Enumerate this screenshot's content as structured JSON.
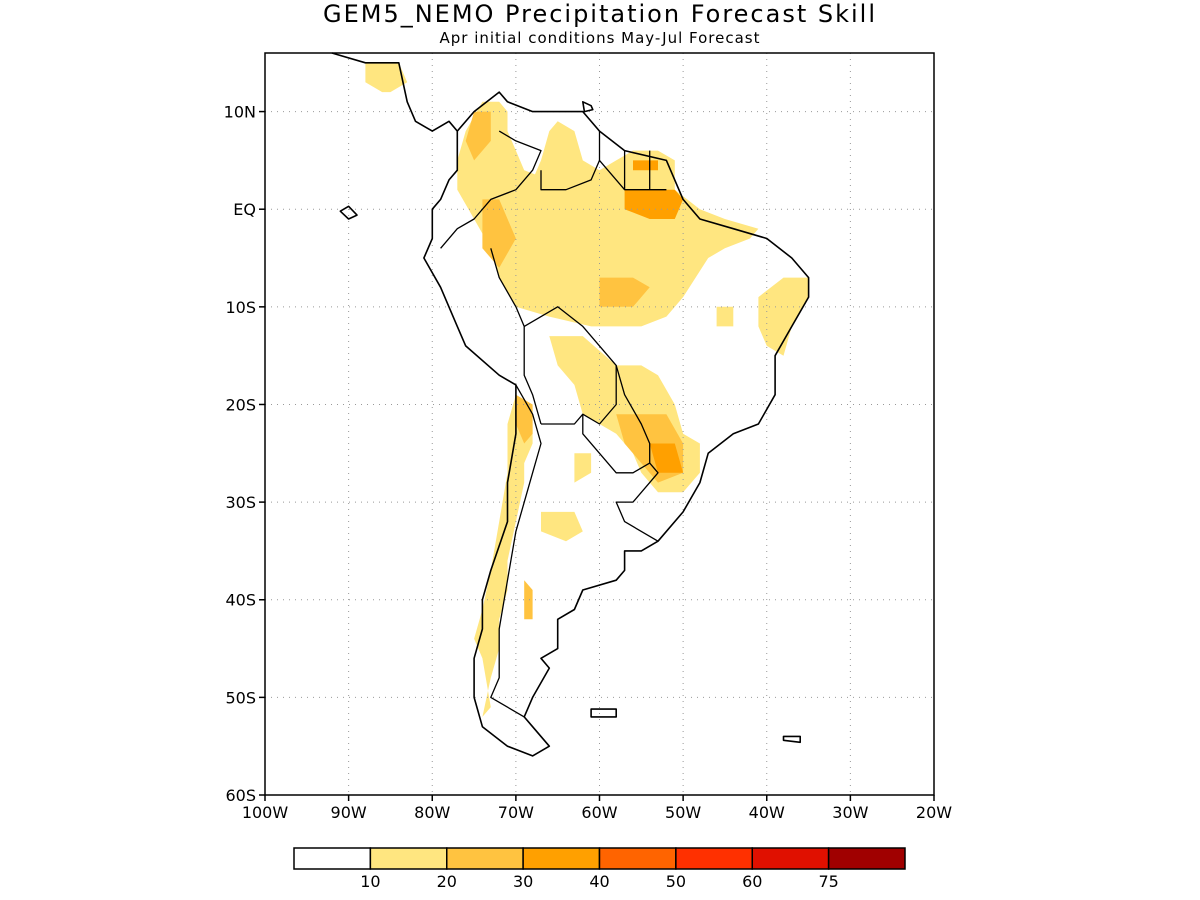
{
  "title": "GEM5_NEMO Precipitation Forecast Skill",
  "subtitle": "Apr initial conditions   May-Jul Forecast",
  "map": {
    "lon_range": [
      -100,
      -20
    ],
    "lat_range": [
      -60,
      16
    ],
    "lat_ticks": [
      {
        "value": 10,
        "label": "10N"
      },
      {
        "value": 0,
        "label": "EQ"
      },
      {
        "value": -10,
        "label": "10S"
      },
      {
        "value": -20,
        "label": "20S"
      },
      {
        "value": -30,
        "label": "30S"
      },
      {
        "value": -40,
        "label": "40S"
      },
      {
        "value": -50,
        "label": "50S"
      },
      {
        "value": -60,
        "label": "60S"
      }
    ],
    "lon_ticks": [
      {
        "value": -100,
        "label": "100W"
      },
      {
        "value": -90,
        "label": "90W"
      },
      {
        "value": -80,
        "label": "80W"
      },
      {
        "value": -70,
        "label": "70W"
      },
      {
        "value": -60,
        "label": "60W"
      },
      {
        "value": -50,
        "label": "50W"
      },
      {
        "value": -40,
        "label": "40W"
      },
      {
        "value": -30,
        "label": "30W"
      },
      {
        "value": -20,
        "label": "20W"
      }
    ],
    "gridlines": true
  },
  "colorbar": {
    "colors": [
      "#ffffff",
      "#ffe680",
      "#ffc340",
      "#ffa000",
      "#ff6400",
      "#ff3000",
      "#e01000",
      "#a00000"
    ],
    "labels": [
      "10",
      "20",
      "30",
      "40",
      "50",
      "60",
      "75"
    ]
  },
  "skill_regions": [
    {
      "level": 1,
      "lonlat": [
        [
          -72,
          11
        ],
        [
          -74,
          11
        ],
        [
          -76,
          8
        ],
        [
          -77,
          5
        ],
        [
          -77,
          2
        ],
        [
          -75,
          -1
        ],
        [
          -73,
          -4
        ],
        [
          -72,
          -7
        ],
        [
          -70,
          -10
        ],
        [
          -66,
          -11
        ],
        [
          -61,
          -12
        ],
        [
          -55,
          -12
        ],
        [
          -52,
          -11
        ],
        [
          -50,
          -9
        ],
        [
          -47,
          -5
        ],
        [
          -45,
          -4
        ],
        [
          -42,
          -3
        ],
        [
          -41,
          -2
        ],
        [
          -45,
          -1
        ],
        [
          -48,
          0
        ],
        [
          -51,
          2
        ],
        [
          -51,
          5
        ],
        [
          -53,
          6
        ],
        [
          -56,
          6
        ],
        [
          -58,
          5
        ],
        [
          -60,
          4
        ],
        [
          -62,
          5
        ],
        [
          -63,
          8
        ],
        [
          -65,
          9
        ],
        [
          -66,
          8
        ],
        [
          -67,
          5
        ],
        [
          -68,
          3
        ],
        [
          -66,
          1
        ],
        [
          -63,
          0
        ],
        [
          -60,
          0
        ],
        [
          -59,
          1
        ],
        [
          -61,
          2
        ],
        [
          -63,
          3
        ],
        [
          -66,
          3
        ],
        [
          -69,
          4
        ],
        [
          -70,
          6
        ],
        [
          -71,
          8
        ],
        [
          -71,
          10
        ]
      ]
    },
    {
      "level": 1,
      "lonlat": [
        [
          -66,
          -13
        ],
        [
          -62,
          -13
        ],
        [
          -58,
          -16
        ],
        [
          -55,
          -16
        ],
        [
          -53,
          -17
        ],
        [
          -51,
          -20
        ],
        [
          -50,
          -23
        ],
        [
          -48,
          -24
        ],
        [
          -48,
          -27
        ],
        [
          -50,
          -29
        ],
        [
          -53,
          -29
        ],
        [
          -55,
          -27
        ],
        [
          -56,
          -25
        ],
        [
          -58,
          -23
        ],
        [
          -60,
          -22
        ],
        [
          -62,
          -21
        ],
        [
          -63,
          -18
        ],
        [
          -65,
          -16
        ]
      ]
    },
    {
      "level": 1,
      "lonlat": [
        [
          -38,
          -7
        ],
        [
          -35,
          -7
        ],
        [
          -35,
          -9
        ],
        [
          -37,
          -12
        ],
        [
          -38,
          -15
        ],
        [
          -40,
          -14
        ],
        [
          -41,
          -12
        ],
        [
          -41,
          -9
        ]
      ]
    },
    {
      "level": 1,
      "lonlat": [
        [
          -70,
          -19
        ],
        [
          -69,
          -20
        ],
        [
          -68,
          -22
        ],
        [
          -68,
          -24
        ],
        [
          -69,
          -26
        ],
        [
          -69,
          -28
        ],
        [
          -70,
          -32
        ],
        [
          -71,
          -36
        ],
        [
          -71,
          -39
        ],
        [
          -72,
          -42
        ],
        [
          -72,
          -45
        ],
        [
          -73,
          -48
        ],
        [
          -74,
          -52
        ],
        [
          -73,
          -51
        ],
        [
          -74,
          -46
        ],
        [
          -75,
          -44
        ],
        [
          -74,
          -41
        ],
        [
          -73,
          -37
        ],
        [
          -72,
          -32
        ],
        [
          -71,
          -27
        ],
        [
          -71,
          -22
        ]
      ]
    },
    {
      "level": 1,
      "lonlat": [
        [
          -67,
          -31
        ],
        [
          -63,
          -31
        ],
        [
          -62,
          -33
        ],
        [
          -64,
          -34
        ],
        [
          -67,
          -33
        ]
      ]
    },
    {
      "level": 1,
      "lonlat": [
        [
          -63,
          -25
        ],
        [
          -61,
          -25
        ],
        [
          -61,
          -27
        ],
        [
          -63,
          -28
        ]
      ]
    },
    {
      "level": 1,
      "lonlat": [
        [
          -88,
          15
        ],
        [
          -84,
          15
        ],
        [
          -83,
          13
        ],
        [
          -85,
          12
        ],
        [
          -86,
          12
        ],
        [
          -88,
          13
        ]
      ]
    },
    {
      "level": 1,
      "lonlat": [
        [
          -66,
          -2
        ],
        [
          -60,
          -2
        ],
        [
          -59,
          -5
        ],
        [
          -61,
          -6
        ],
        [
          -65,
          -5
        ]
      ]
    },
    {
      "level": 1,
      "lonlat": [
        [
          -46,
          -10
        ],
        [
          -44,
          -10
        ],
        [
          -44,
          -12
        ],
        [
          -46,
          -12
        ]
      ]
    },
    {
      "level": 2,
      "lonlat": [
        [
          -73,
          10
        ],
        [
          -75,
          10
        ],
        [
          -76,
          7
        ],
        [
          -75,
          5
        ],
        [
          -73,
          7
        ]
      ]
    },
    {
      "level": 2,
      "lonlat": [
        [
          -74,
          1
        ],
        [
          -72,
          1
        ],
        [
          -70,
          -3
        ],
        [
          -72,
          -6
        ],
        [
          -74,
          -4
        ]
      ]
    },
    {
      "level": 2,
      "lonlat": [
        [
          -60,
          -7
        ],
        [
          -56,
          -7
        ],
        [
          -54,
          -8
        ],
        [
          -56,
          -10
        ],
        [
          -60,
          -10
        ]
      ]
    },
    {
      "level": 2,
      "lonlat": [
        [
          -70,
          -19
        ],
        [
          -68,
          -20
        ],
        [
          -68,
          -23
        ],
        [
          -69,
          -24
        ],
        [
          -70,
          -22
        ]
      ]
    },
    {
      "level": 2,
      "lonlat": [
        [
          -58,
          -21
        ],
        [
          -52,
          -21
        ],
        [
          -50,
          -24
        ],
        [
          -50,
          -27
        ],
        [
          -53,
          -28
        ],
        [
          -55,
          -26
        ],
        [
          -57,
          -24
        ]
      ]
    },
    {
      "level": 2,
      "lonlat": [
        [
          -69,
          -38
        ],
        [
          -68,
          -39
        ],
        [
          -68,
          -42
        ],
        [
          -69,
          -42
        ]
      ]
    },
    {
      "level": 3,
      "lonlat": [
        [
          -57,
          2
        ],
        [
          -51,
          2
        ],
        [
          -50,
          1
        ],
        [
          -51,
          -1
        ],
        [
          -54,
          -1
        ],
        [
          -57,
          0
        ]
      ]
    },
    {
      "level": 3,
      "lonlat": [
        [
          -56,
          5
        ],
        [
          -53,
          5
        ],
        [
          -53,
          4
        ],
        [
          -56,
          4
        ]
      ]
    },
    {
      "level": 3,
      "lonlat": [
        [
          -54,
          -24
        ],
        [
          -51,
          -24
        ],
        [
          -50,
          -27
        ],
        [
          -53,
          -27
        ]
      ]
    }
  ],
  "coastlines": [
    {
      "closed": true,
      "lonlat": [
        [
          -77,
          8
        ],
        [
          -75,
          10
        ],
        [
          -72,
          12
        ],
        [
          -71,
          11
        ],
        [
          -68,
          10
        ],
        [
          -64,
          10
        ],
        [
          -62,
          10
        ],
        [
          -60,
          8
        ],
        [
          -57,
          6
        ],
        [
          -52,
          5
        ],
        [
          -50,
          1
        ],
        [
          -48,
          -1
        ],
        [
          -44,
          -2
        ],
        [
          -40,
          -3
        ],
        [
          -37,
          -5
        ],
        [
          -35,
          -7
        ],
        [
          -35,
          -9
        ],
        [
          -37,
          -12
        ],
        [
          -39,
          -15
        ],
        [
          -39,
          -19
        ],
        [
          -41,
          -22
        ],
        [
          -44,
          -23
        ],
        [
          -47,
          -25
        ],
        [
          -48,
          -28
        ],
        [
          -50,
          -31
        ],
        [
          -53,
          -34
        ],
        [
          -55,
          -35
        ],
        [
          -57,
          -35
        ],
        [
          -57,
          -37
        ],
        [
          -58,
          -38
        ],
        [
          -62,
          -39
        ],
        [
          -63,
          -41
        ],
        [
          -65,
          -42
        ],
        [
          -65,
          -45
        ],
        [
          -67,
          -46
        ],
        [
          -66,
          -47
        ],
        [
          -68,
          -50
        ],
        [
          -69,
          -52
        ],
        [
          -68,
          -53
        ],
        [
          -66,
          -55
        ],
        [
          -68,
          -56
        ],
        [
          -71,
          -55
        ],
        [
          -74,
          -53
        ],
        [
          -75,
          -50
        ],
        [
          -75,
          -46
        ],
        [
          -74,
          -43
        ],
        [
          -74,
          -40
        ],
        [
          -73,
          -37
        ],
        [
          -71,
          -32
        ],
        [
          -71,
          -28
        ],
        [
          -70,
          -23
        ],
        [
          -70,
          -18
        ],
        [
          -72,
          -17
        ],
        [
          -76,
          -14
        ],
        [
          -77,
          -12
        ],
        [
          -79,
          -8
        ],
        [
          -81,
          -5
        ],
        [
          -80,
          -3
        ],
        [
          -80,
          0
        ],
        [
          -79,
          1
        ],
        [
          -78,
          3
        ],
        [
          -77,
          4
        ]
      ]
    },
    {
      "closed": false,
      "lonlat": [
        [
          -92,
          16
        ],
        [
          -88,
          15
        ],
        [
          -84,
          15
        ],
        [
          -83,
          11
        ],
        [
          -82,
          9
        ],
        [
          -80,
          8
        ],
        [
          -78,
          9
        ],
        [
          -77,
          8
        ]
      ]
    },
    {
      "closed": true,
      "lonlat": [
        [
          -91,
          -0.2
        ],
        [
          -90,
          0.3
        ],
        [
          -89,
          -0.6
        ],
        [
          -90,
          -1
        ]
      ]
    },
    {
      "closed": true,
      "lonlat": [
        [
          -61,
          -51.2
        ],
        [
          -58,
          -51.2
        ],
        [
          -58,
          -52
        ],
        [
          -61,
          -52
        ]
      ]
    },
    {
      "closed": true,
      "lonlat": [
        [
          -38,
          -54
        ],
        [
          -36,
          -54
        ],
        [
          -36,
          -54.6
        ],
        [
          -38,
          -54.4
        ]
      ]
    },
    {
      "closed": true,
      "lonlat": [
        [
          -62,
          11
        ],
        [
          -61,
          10.6
        ],
        [
          -60.8,
          10.2
        ],
        [
          -61.8,
          10
        ]
      ]
    }
  ],
  "borders": [
    [
      [
        -79,
        -4
      ],
      [
        -77,
        -2
      ],
      [
        -75,
        -1
      ],
      [
        -73,
        1
      ],
      [
        -70,
        2
      ],
      [
        -68,
        4
      ],
      [
        -67,
        6
      ],
      [
        -70,
        7
      ],
      [
        -72,
        8
      ]
    ],
    [
      [
        -73,
        -4
      ],
      [
        -72,
        -7
      ],
      [
        -70,
        -10
      ],
      [
        -69,
        -12
      ],
      [
        -69,
        -17
      ],
      [
        -68,
        -19
      ],
      [
        -67,
        -22
      ]
    ],
    [
      [
        -70,
        -18
      ],
      [
        -68,
        -21
      ],
      [
        -67,
        -24
      ],
      [
        -68,
        -27
      ],
      [
        -70,
        -33
      ],
      [
        -71,
        -38
      ],
      [
        -72,
        -43
      ],
      [
        -72,
        -48
      ],
      [
        -73,
        -50
      ],
      [
        -69,
        -52
      ]
    ],
    [
      [
        -69,
        -12
      ],
      [
        -65,
        -10
      ],
      [
        -62,
        -12
      ],
      [
        -60,
        -14
      ],
      [
        -58,
        -16
      ],
      [
        -58,
        -20
      ],
      [
        -60,
        -22
      ],
      [
        -62,
        -21
      ],
      [
        -63,
        -22
      ],
      [
        -65,
        -22
      ],
      [
        -67,
        -22
      ]
    ],
    [
      [
        -58,
        -16
      ],
      [
        -57,
        -19
      ],
      [
        -55,
        -22
      ],
      [
        -54,
        -24
      ],
      [
        -54,
        -26
      ],
      [
        -56,
        -27
      ],
      [
        -58,
        -27
      ],
      [
        -62,
        -23
      ],
      [
        -62,
        -21
      ]
    ],
    [
      [
        -54,
        -26
      ],
      [
        -53,
        -27
      ],
      [
        -54,
        -28
      ],
      [
        -56,
        -30
      ],
      [
        -58,
        -30
      ],
      [
        -57,
        -32
      ],
      [
        -53,
        -34
      ]
    ],
    [
      [
        -60,
        5
      ],
      [
        -61,
        3
      ],
      [
        -64,
        2
      ],
      [
        -67,
        2
      ],
      [
        -67,
        4
      ]
    ],
    [
      [
        -60,
        8
      ],
      [
        -60,
        5
      ],
      [
        -57,
        2
      ],
      [
        -56,
        2
      ],
      [
        -54,
        2
      ],
      [
        -52,
        2
      ]
    ],
    [
      [
        -57,
        6
      ],
      [
        -57,
        2
      ]
    ],
    [
      [
        -54,
        6
      ],
      [
        -54,
        2
      ]
    ]
  ]
}
